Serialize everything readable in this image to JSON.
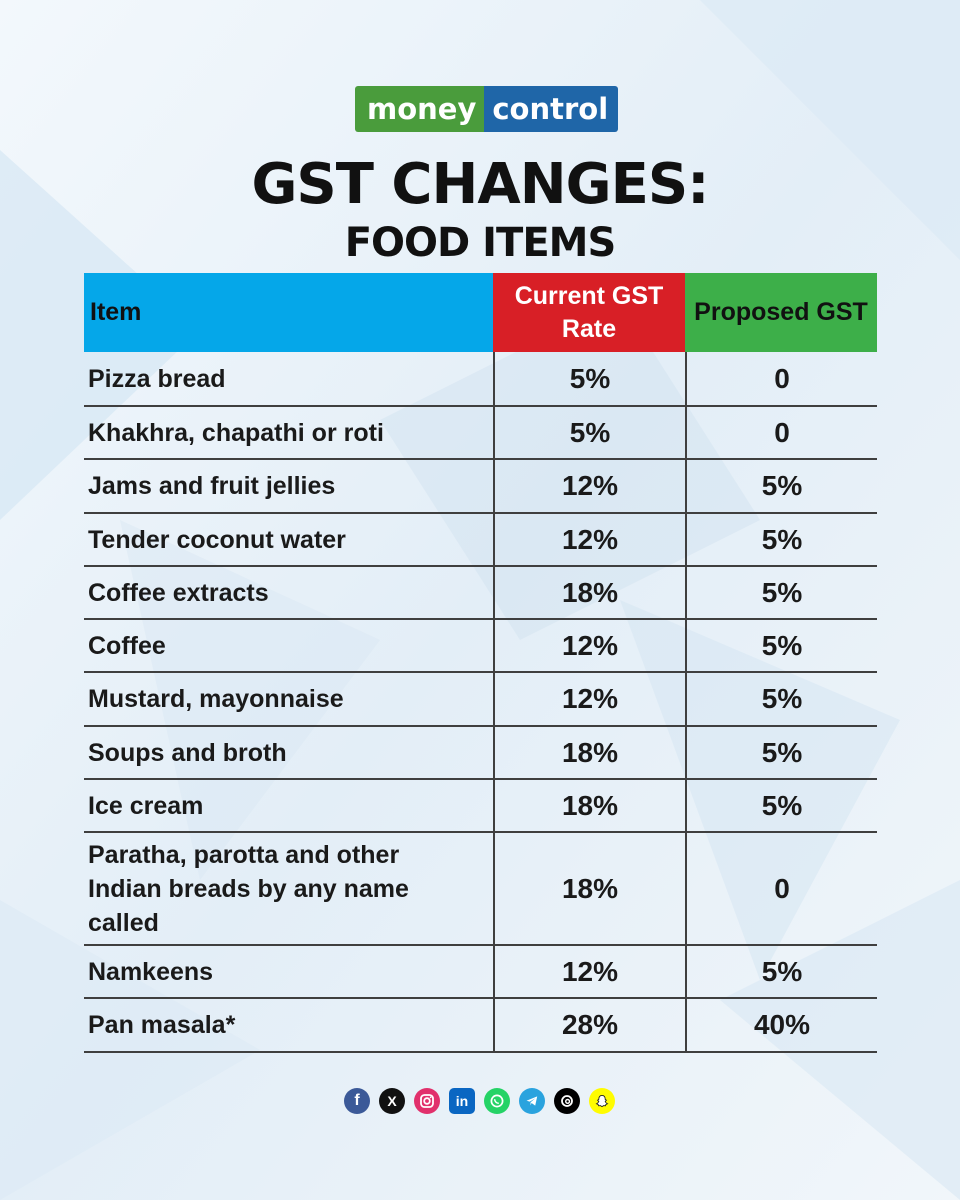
{
  "brand": {
    "part1": "money",
    "part2": "control"
  },
  "title": "GST CHANGES:",
  "subtitle": "FOOD ITEMS",
  "colors": {
    "item_header": "#05a7e9",
    "current_header": "#d81f26",
    "proposed_header": "#3daf49"
  },
  "table": {
    "headers": {
      "item": "Item",
      "current": "Current GST Rate",
      "proposed": "Proposed GST"
    },
    "rows": [
      {
        "item": "Pizza bread",
        "current": "5%",
        "proposed": "0"
      },
      {
        "item": "Khakhra, chapathi or roti",
        "current": "5%",
        "proposed": "0"
      },
      {
        "item": "Jams and fruit jellies",
        "current": "12%",
        "proposed": "5%"
      },
      {
        "item": "Tender coconut water",
        "current": "12%",
        "proposed": "5%"
      },
      {
        "item": "Coffee extracts",
        "current": "18%",
        "proposed": "5%"
      },
      {
        "item": "Coffee",
        "current": "12%",
        "proposed": "5%"
      },
      {
        "item": "Mustard, mayonnaise",
        "current": "12%",
        "proposed": "5%"
      },
      {
        "item": "Soups and broth",
        "current": "18%",
        "proposed": "5%"
      },
      {
        "item": "Ice cream",
        "current": "18%",
        "proposed": "5%"
      },
      {
        "item": "Paratha, parotta and other Indian breads by any name called",
        "current": "18%",
        "proposed": "0"
      },
      {
        "item": "Namkeens",
        "current": "12%",
        "proposed": "5%"
      },
      {
        "item": "Pan masala*",
        "current": "28%",
        "proposed": "40%"
      }
    ]
  },
  "social_icons": [
    "facebook-icon",
    "x-icon",
    "instagram-icon",
    "linkedin-icon",
    "whatsapp-icon",
    "telegram-icon",
    "threads-icon",
    "snapchat-icon"
  ]
}
